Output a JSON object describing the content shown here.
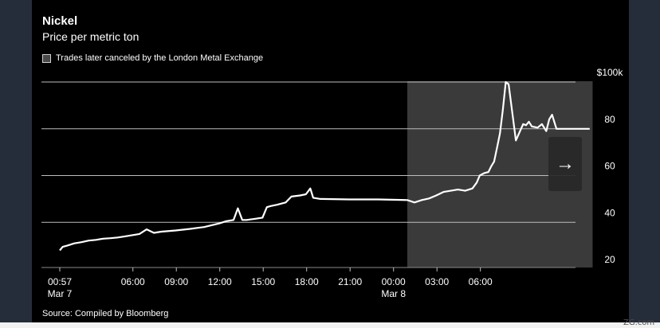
{
  "colors": {
    "background": "#000000",
    "line": "#ffffff",
    "shade": "#3a3a3a",
    "grid": "#bdbdbd"
  },
  "nav": {
    "next_icon": "arrow-right-icon"
  },
  "watermark": "ZG.com",
  "chart_data": {
    "type": "line",
    "title": "Nickel",
    "subtitle": "Price per metric ton",
    "legend": [
      {
        "label": "Trades later canceled by the London Metal Exchange",
        "color": "#3a3a3a",
        "placement": "top-left"
      }
    ],
    "source": "Source: Compiled by Bloomberg",
    "x_unit": "hours since Mar 7 00:57",
    "xlim": [
      0,
      37.6
    ],
    "ylim": [
      18,
      103
    ],
    "y_axis_position": "right",
    "grid": true,
    "y_ticks": [
      {
        "value": 20,
        "label": "20"
      },
      {
        "value": 40,
        "label": "40"
      },
      {
        "value": 60,
        "label": "60"
      },
      {
        "value": 80,
        "label": "80"
      },
      {
        "value": 100,
        "label": "$100k"
      }
    ],
    "x_ticks": [
      {
        "value": 0,
        "label": "00:57",
        "sublabel": "Mar 7"
      },
      {
        "value": 5.05,
        "label": "06:00",
        "sublabel": ""
      },
      {
        "value": 8.05,
        "label": "09:00",
        "sublabel": ""
      },
      {
        "value": 11.05,
        "label": "12:00",
        "sublabel": ""
      },
      {
        "value": 14.05,
        "label": "15:00",
        "sublabel": ""
      },
      {
        "value": 17.05,
        "label": "18:00",
        "sublabel": ""
      },
      {
        "value": 20.05,
        "label": "21:00",
        "sublabel": ""
      },
      {
        "value": 23.05,
        "label": "00:00",
        "sublabel": "Mar 8"
      },
      {
        "value": 26.05,
        "label": "03:00",
        "sublabel": ""
      },
      {
        "value": 29.05,
        "label": "06:00",
        "sublabel": ""
      }
    ],
    "shaded_region": {
      "x": [
        24.0,
        36.8
      ],
      "label": "Trades later canceled by the London Metal Exchange"
    },
    "series": [
      {
        "x": [
          0,
          0.2,
          0.5,
          1,
          1.5,
          2,
          2.5,
          3,
          3.5,
          4,
          4.5,
          5,
          5.5,
          6.0,
          6.5,
          7,
          8,
          9,
          10,
          11,
          11.5,
          12.0,
          12.3,
          12.6,
          12.9,
          13.5,
          14.0,
          14.3,
          14.6,
          15,
          15.6,
          16,
          16.6,
          17.0,
          17.3,
          17.5,
          18,
          20,
          22,
          24,
          24.5,
          25,
          25.5,
          26,
          26.5,
          27,
          27.5,
          28,
          28.5,
          28.8,
          29.0,
          29.3,
          29.6,
          29.8,
          30.0,
          30.2,
          30.4,
          30.6,
          30.8,
          31.0,
          31.5,
          32,
          32.2,
          32.4,
          32.6,
          33.0,
          33.3,
          33.6,
          33.8,
          34.0,
          34.3,
          34.6,
          34.8,
          35.0,
          35.4,
          35.6,
          35.8,
          36.0,
          36.3,
          36.6
        ],
        "y": [
          28,
          29.5,
          30,
          31,
          31.5,
          32.2,
          32.5,
          33,
          33.2,
          33.5,
          34,
          34.5,
          35,
          37,
          35.5,
          36,
          36.5,
          37.2,
          38,
          39.5,
          40.5,
          41,
          46,
          41,
          41,
          41.5,
          42,
          46.5,
          47,
          47.5,
          48.5,
          51,
          51.5,
          52,
          54.5,
          50.5,
          50,
          49.8,
          49.8,
          49.5,
          48.5,
          49.5,
          50.2,
          51.5,
          53,
          53.5,
          54,
          53.5,
          54.5,
          57,
          60,
          61,
          61.5,
          64,
          66,
          72,
          78,
          88,
          100,
          99,
          75,
          82,
          81.5,
          83,
          81,
          80.5,
          82,
          79,
          84,
          86,
          80,
          80,
          80,
          80,
          80,
          80,
          80,
          80,
          80,
          80
        ]
      }
    ]
  }
}
